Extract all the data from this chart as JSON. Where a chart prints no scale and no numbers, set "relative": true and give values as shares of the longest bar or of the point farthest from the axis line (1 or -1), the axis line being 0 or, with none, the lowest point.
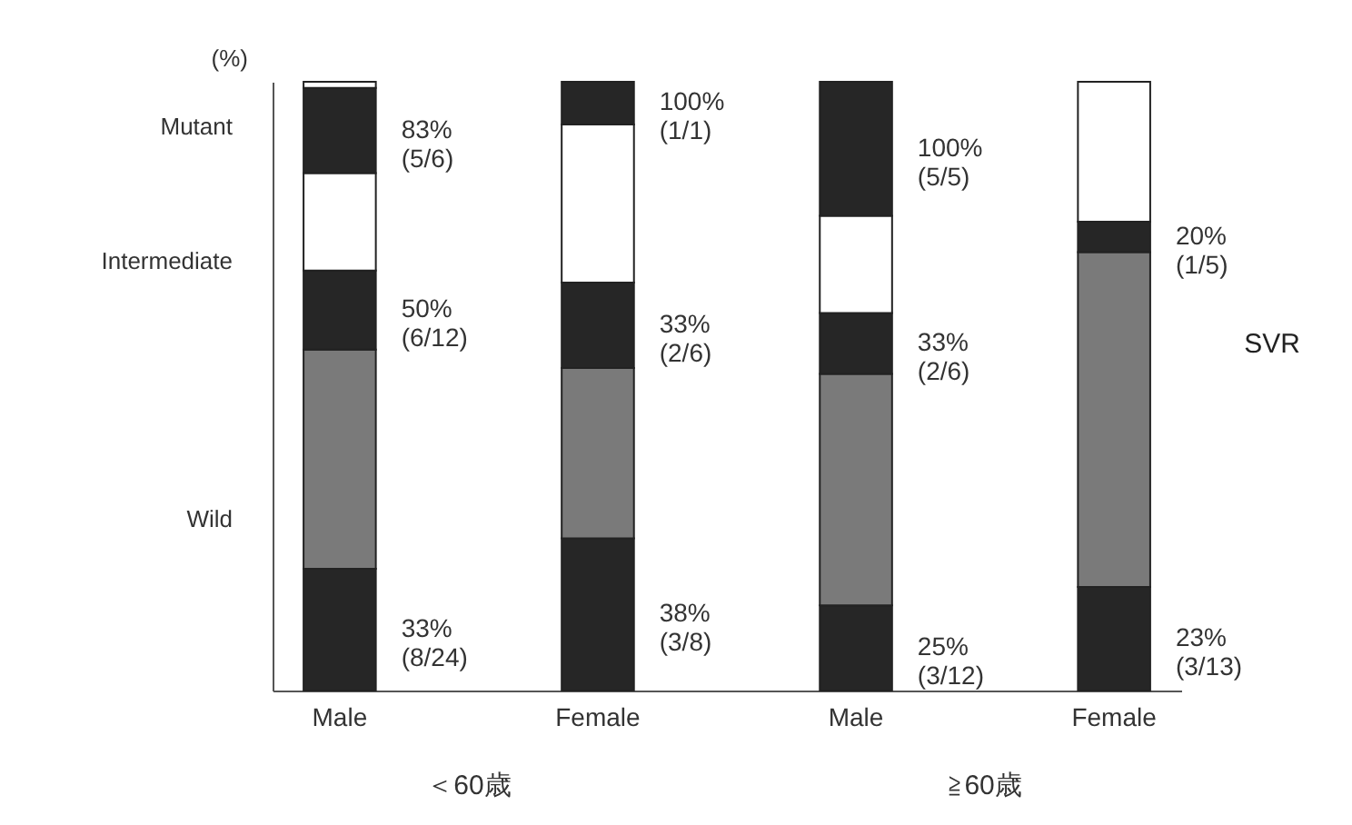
{
  "chart_data": {
    "type": "bar",
    "stacked": true,
    "relative": true,
    "ylabel": "(%)",
    "categories": [
      "Male",
      "Female",
      "Male",
      "Female"
    ],
    "series": [
      {
        "color": "#262626",
        "values": [
          0.2,
          0.25,
          0.14,
          0.17
        ]
      },
      {
        "color": "#7a7a7a",
        "values": [
          0.36,
          0.28,
          0.38,
          0.55
        ]
      },
      {
        "color": "#262626",
        "values": [
          0.13,
          0.14,
          0.1,
          0.05
        ]
      },
      {
        "color": "#ffffff",
        "values": [
          0.16,
          0.26,
          0.16,
          0.23
        ]
      },
      {
        "color": "#262626",
        "values": [
          0.14,
          0.07,
          0.22,
          0
        ]
      },
      {
        "color": "#ffffff",
        "values": [
          0.01,
          0,
          0,
          0
        ]
      }
    ],
    "annotations": [
      "Mutant",
      "Intermediate",
      "Wild",
      "83% (5/6)",
      "50% (6/12)",
      "33% (8/24)",
      "100% (1/1)",
      "33% (2/6)",
      "38% (3/8)",
      "100% (5/5)",
      "33% (2/6)",
      "25% (3/12)",
      "20% (1/5)",
      "23% (3/13)",
      "＜60歳",
      "≧60歳",
      "SVR"
    ]
  }
}
